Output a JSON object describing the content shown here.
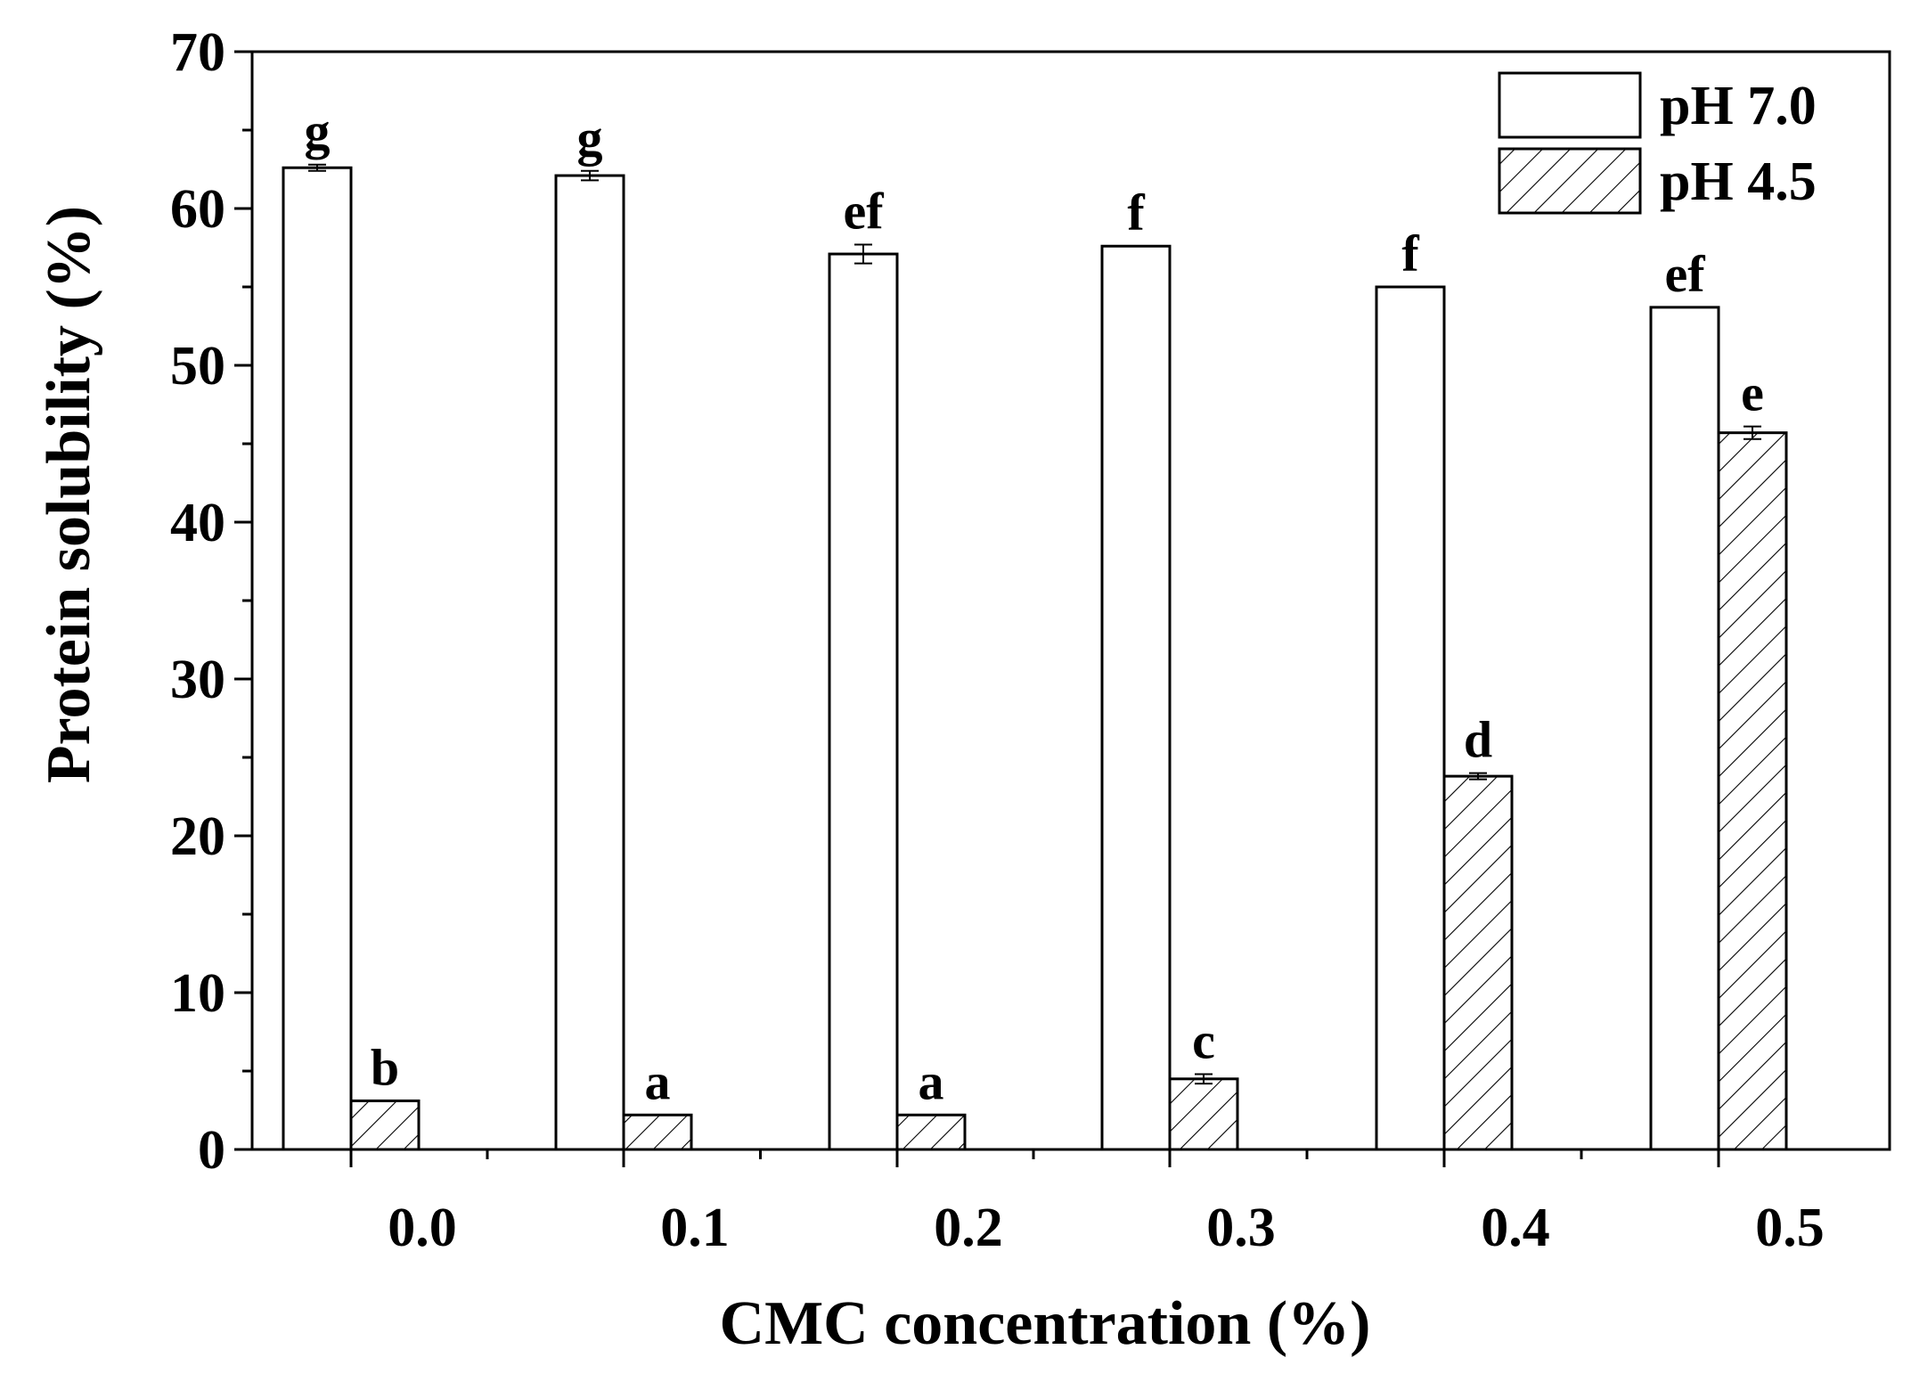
{
  "chart_data": {
    "type": "bar",
    "title": "",
    "xlabel": "CMC concentration (%)",
    "ylabel": "Protein solubility (%)",
    "categories": [
      "0.0",
      "0.1",
      "0.2",
      "0.3",
      "0.4",
      "0.5"
    ],
    "ylim": [
      0,
      70
    ],
    "yticks": [
      0,
      10,
      20,
      30,
      40,
      50,
      60,
      70
    ],
    "ytick_labels": [
      "0",
      "10",
      "20",
      "30",
      "40",
      "50",
      "60",
      "70"
    ],
    "grid": false,
    "legend_position": "top-right",
    "series": [
      {
        "name": "pH 7.0",
        "fill": "none",
        "values": [
          62.6,
          62.1,
          57.1,
          57.6,
          55.0,
          53.7
        ],
        "errors": [
          0.2,
          0.3,
          0.6,
          0.0,
          0.0,
          0.0
        ],
        "letters": [
          "g",
          "g",
          "ef",
          "f",
          "f",
          "ef"
        ]
      },
      {
        "name": "pH 4.5",
        "fill": "hatch",
        "values": [
          3.1,
          2.2,
          2.2,
          4.5,
          23.8,
          45.7
        ],
        "errors": [
          0.0,
          0.0,
          0.0,
          0.3,
          0.2,
          0.4
        ],
        "letters": [
          "b",
          "a",
          "a",
          "c",
          "d",
          "e"
        ]
      }
    ],
    "colors": {
      "axis": "#000000",
      "bar_outline": "#000000",
      "bar_fill": "#ffffff",
      "hatch": "#000000"
    }
  }
}
